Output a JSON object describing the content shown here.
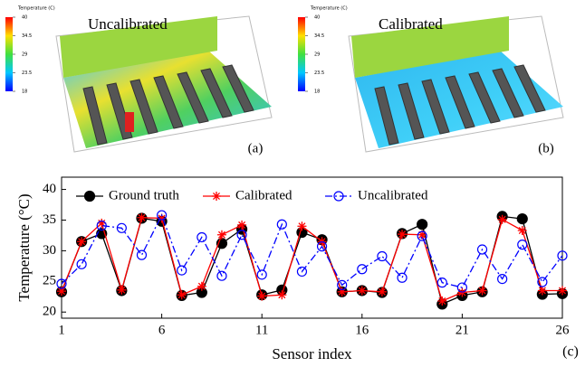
{
  "panels": [
    {
      "title": "Uncalibrated",
      "label": "(a)",
      "colorbar": {
        "title": "Temperature (C)",
        "clim": [
          18,
          40
        ],
        "ticks": [
          40,
          34.5,
          29,
          23.5,
          18
        ]
      }
    },
    {
      "title": "Calibrated",
      "label": "(b)",
      "colorbar": {
        "title": "Temperature (C)",
        "clim": [
          18,
          40
        ],
        "ticks": [
          40,
          34.5,
          29,
          23.5,
          18
        ]
      }
    }
  ],
  "chart_data": {
    "type": "line",
    "xlabel": "Sensor index",
    "ylabel": "Temperature (°C)",
    "annotation": "(c)",
    "x": [
      1,
      2,
      3,
      4,
      5,
      6,
      7,
      8,
      9,
      10,
      11,
      12,
      13,
      14,
      15,
      16,
      17,
      18,
      19,
      20,
      21,
      22,
      23,
      24,
      25,
      26
    ],
    "xlim": [
      1,
      26
    ],
    "xticks": [
      1,
      6,
      11,
      16,
      21,
      26
    ],
    "ylim": [
      19,
      42
    ],
    "yticks": [
      20,
      25,
      30,
      35,
      40
    ],
    "legend": "upper left",
    "series": [
      {
        "name": "Ground truth",
        "color": "#000000",
        "marker": "filled-circle",
        "dash": "solid",
        "values": [
          23.3,
          31.5,
          32.8,
          23.5,
          35.3,
          34.8,
          22.7,
          23.2,
          31.2,
          33.5,
          22.8,
          23.6,
          33.0,
          31.8,
          23.3,
          23.5,
          23.2,
          32.8,
          34.3,
          21.3,
          22.7,
          23.3,
          35.6,
          35.2,
          22.9,
          23.0
        ]
      },
      {
        "name": "Calibrated",
        "color": "#ff0000",
        "marker": "star",
        "dash": "solid",
        "values": [
          23.4,
          31.5,
          34.5,
          23.6,
          35.4,
          35.3,
          22.8,
          24.2,
          32.6,
          34.2,
          22.6,
          22.8,
          34.0,
          31.5,
          23.3,
          23.5,
          23.3,
          32.7,
          32.6,
          21.8,
          23.2,
          23.5,
          35.1,
          33.3,
          23.5,
          23.5
        ]
      },
      {
        "name": "Uncalibrated",
        "color": "#0000ff",
        "marker": "open-circle",
        "dash": "dash-dot",
        "values": [
          24.6,
          27.8,
          34.1,
          33.7,
          29.3,
          35.8,
          26.8,
          32.2,
          25.9,
          32.6,
          26.1,
          34.3,
          26.6,
          30.7,
          24.4,
          27.0,
          29.1,
          25.6,
          32.4,
          24.8,
          24.0,
          30.2,
          25.4,
          31.0,
          24.9,
          29.2
        ]
      }
    ]
  }
}
